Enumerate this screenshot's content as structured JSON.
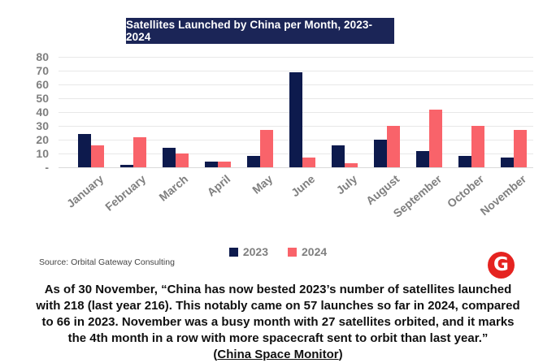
{
  "title": "Satellites Launched by China per Month, 2023-2024",
  "colors": {
    "title_bg": "#1b2557",
    "navy": "#0d1a4d",
    "pink": "#f9636a",
    "grid": "#e8e8e8",
    "baseline": "#d9d9d9",
    "axis_text": "#7f7f7f",
    "logo_red": "#e52320"
  },
  "chart_data": {
    "type": "bar",
    "title": "Satellites Launched by China per Month, 2023-2024",
    "categories": [
      "January",
      "February",
      "March",
      "April",
      "May",
      "June",
      "July",
      "August",
      "September",
      "October",
      "November"
    ],
    "series": [
      {
        "name": "2023",
        "color": "#0d1a4d",
        "values": [
          24,
          2,
          14,
          4,
          8,
          69,
          16,
          20,
          12,
          8,
          7
        ]
      },
      {
        "name": "2024",
        "color": "#f9636a",
        "values": [
          16,
          22,
          10,
          4,
          27,
          7,
          3,
          30,
          42,
          30,
          27
        ]
      }
    ],
    "xlabel": "",
    "ylabel": "",
    "ylim": [
      0,
      80
    ],
    "y_ticks": [
      {
        "label": "80",
        "value": 80
      },
      {
        "label": "70",
        "value": 70
      },
      {
        "label": "60",
        "value": 60
      },
      {
        "label": "50",
        "value": 50
      },
      {
        "label": "40",
        "value": 40
      },
      {
        "label": "30",
        "value": 30
      },
      {
        "label": "20",
        "value": 20
      },
      {
        "label": "10",
        "value": 10
      },
      {
        "label": "-",
        "value": 0
      }
    ],
    "grid": true,
    "legend_position": "bottom"
  },
  "legend": {
    "items": [
      {
        "label": "2023",
        "color": "#0d1a4d"
      },
      {
        "label": "2024",
        "color": "#f9636a"
      }
    ]
  },
  "source": "Source: Orbital Gateway Consulting",
  "logo_letter": "G",
  "quote": {
    "lines": [
      "As of 30 November, “China has now bested 2023’s number of satellites launched",
      "with 218 (last year 216). This notably came on 57 launches so far in 2024, compared",
      "to 66 in 2023. November was a busy month with 27 satellites orbited, and it marks",
      "the 4th month in a row with more spacecraft sent to orbit than last year.”"
    ],
    "citation_prefix": "(",
    "citation_link": "China Space Monitor",
    "citation_suffix": ")"
  }
}
